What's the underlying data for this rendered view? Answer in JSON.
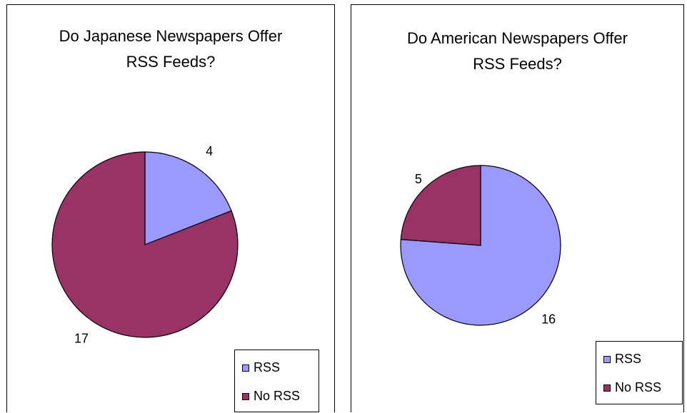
{
  "chart_data": [
    {
      "type": "pie",
      "title_lines": [
        "Do Japanese Newspapers Offer",
        "RSS Feeds?"
      ],
      "categories": [
        "RSS",
        "No RSS"
      ],
      "values": [
        4,
        17
      ],
      "data_labels": [
        "4",
        "17"
      ],
      "colors": [
        "#9999ff",
        "#993366"
      ],
      "legend": [
        "RSS",
        "No RSS"
      ],
      "legend_position": "bottom-right",
      "start_angle_deg": 0
    },
    {
      "type": "pie",
      "title_lines": [
        "Do American Newspapers Offer",
        "RSS Feeds?"
      ],
      "categories": [
        "RSS",
        "No RSS"
      ],
      "values": [
        16,
        5
      ],
      "data_labels": [
        "16",
        "5"
      ],
      "colors": [
        "#9999ff",
        "#993366"
      ],
      "legend": [
        "RSS",
        "No RSS"
      ],
      "legend_position": "bottom-right",
      "start_angle_deg": 0
    }
  ]
}
